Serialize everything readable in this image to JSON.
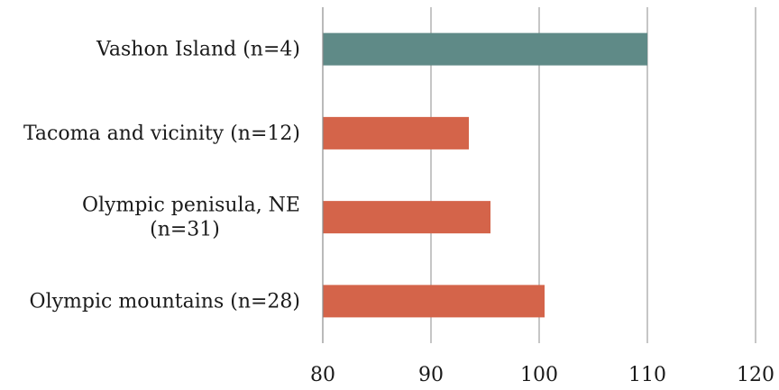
{
  "chart_data": {
    "type": "bar",
    "orientation": "horizontal",
    "categories": [
      [
        "Vashon Island (n=4)"
      ],
      [
        "Tacoma and vicinity (n=12)"
      ],
      [
        "Olympic penisula, NE",
        "(n=31)"
      ],
      [
        "Olympic mountains (n=28)"
      ]
    ],
    "values": [
      110,
      93.5,
      95.5,
      100.5
    ],
    "bar_colors": [
      "#5f8a87",
      "#d4644a",
      "#d4644a",
      "#d4644a"
    ],
    "xlim": [
      80,
      120
    ],
    "xticks": [
      80,
      90,
      100,
      110,
      120
    ],
    "grid": "vertical",
    "title": "",
    "xlabel": "",
    "ylabel": ""
  }
}
